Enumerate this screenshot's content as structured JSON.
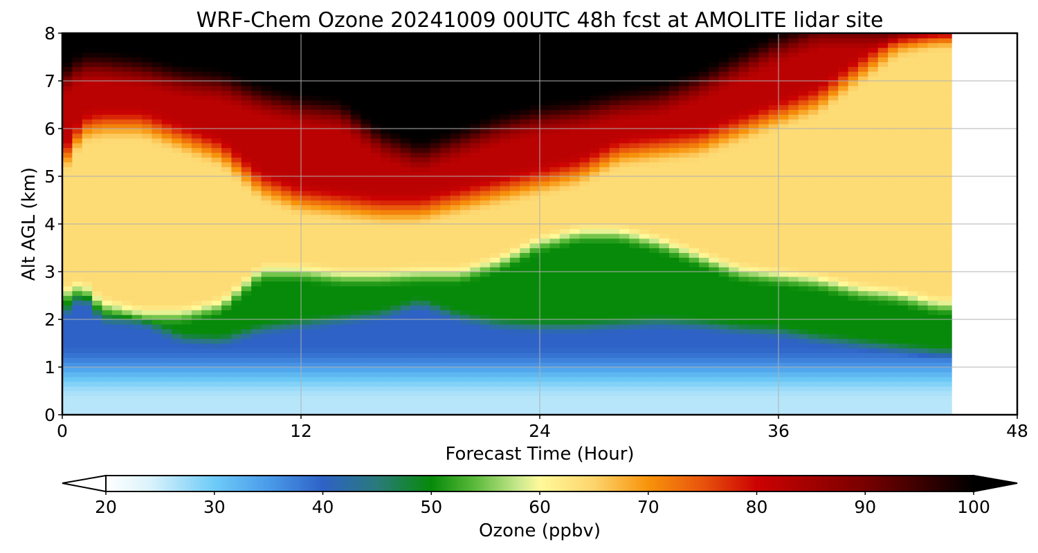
{
  "chart_data": {
    "type": "heatmap",
    "title": "WRF-Chem Ozone  20241009 00UTC 48h fcst at AMOLITE lidar site",
    "xlabel": "Forecast Time (Hour)",
    "ylabel": "Alt AGL (km)",
    "xlim": [
      0,
      48
    ],
    "ylim": [
      0,
      8
    ],
    "xticks": [
      0,
      12,
      24,
      36,
      48
    ],
    "yticks": [
      0,
      1,
      2,
      3,
      4,
      5,
      6,
      7,
      8
    ],
    "grid": true,
    "data_end_hour": 44.7,
    "x": [
      0,
      1,
      2,
      4,
      6,
      8,
      10,
      12,
      14,
      16,
      18,
      20,
      22,
      24,
      26,
      28,
      30,
      32,
      34,
      36,
      38,
      40,
      42,
      44
    ],
    "layers": {
      "boundary_layer_top_km": [
        2.1,
        2.5,
        2.0,
        1.95,
        1.6,
        1.55,
        1.8,
        1.9,
        2.0,
        2.1,
        2.35,
        2.05,
        1.9,
        1.85,
        1.85,
        1.9,
        1.95,
        1.9,
        1.8,
        1.75,
        1.6,
        1.5,
        1.4,
        1.3
      ],
      "green_layer_top_km": [
        2.5,
        2.7,
        2.3,
        2.1,
        2.1,
        2.3,
        3.0,
        3.0,
        2.9,
        2.9,
        2.95,
        2.95,
        3.2,
        3.6,
        3.8,
        3.8,
        3.6,
        3.3,
        3.0,
        2.9,
        2.8,
        2.6,
        2.5,
        2.3
      ],
      "red_layer_bottom_km": [
        5.3,
        6.0,
        6.1,
        6.1,
        5.8,
        5.5,
        4.8,
        4.5,
        4.4,
        4.3,
        4.3,
        4.5,
        4.7,
        4.9,
        5.1,
        5.5,
        5.6,
        5.7,
        6.0,
        6.3,
        6.6,
        7.2,
        7.8,
        8.0
      ],
      "black_layer_bottom_km": [
        7.0,
        7.3,
        7.3,
        7.2,
        7.0,
        6.9,
        6.6,
        6.4,
        6.3,
        5.7,
        5.4,
        5.7,
        6.0,
        6.2,
        6.3,
        6.5,
        6.6,
        6.9,
        7.3,
        7.7,
        8.0,
        8.0,
        8.0,
        8.0
      ]
    },
    "layer_values_ppbv": {
      "surface": 26,
      "boundary_layer": 40,
      "green_layer": 50,
      "middle": 64,
      "red_layer": 82,
      "black_layer": 100
    },
    "colorbar": {
      "label": "Ozone  (ppbv)",
      "min": 20,
      "max": 100,
      "ticks": [
        20,
        30,
        40,
        50,
        60,
        70,
        80,
        90,
        100
      ],
      "extend": "both",
      "stops": [
        {
          "v": 20,
          "c": "#ffffff"
        },
        {
          "v": 24,
          "c": "#dcf3fb"
        },
        {
          "v": 30,
          "c": "#6ecbf7"
        },
        {
          "v": 35,
          "c": "#4a9bea"
        },
        {
          "v": 40,
          "c": "#2e62c6"
        },
        {
          "v": 45,
          "c": "#2a7a7a"
        },
        {
          "v": 50,
          "c": "#078a09"
        },
        {
          "v": 54,
          "c": "#5aba3a"
        },
        {
          "v": 58,
          "c": "#c8e88e"
        },
        {
          "v": 60,
          "c": "#fff99a"
        },
        {
          "v": 65,
          "c": "#fdd46c"
        },
        {
          "v": 70,
          "c": "#f7930b"
        },
        {
          "v": 75,
          "c": "#e8540c"
        },
        {
          "v": 80,
          "c": "#cc0202"
        },
        {
          "v": 90,
          "c": "#780000"
        },
        {
          "v": 100,
          "c": "#000000"
        }
      ]
    }
  }
}
